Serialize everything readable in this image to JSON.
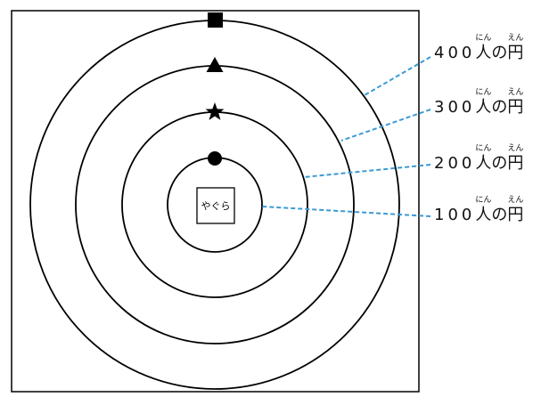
{
  "diagram": {
    "tower_label": "やぐら",
    "rings": [
      {
        "count": "400",
        "unit": "人",
        "unit_ruby": "にん",
        "particle": "の",
        "noun": "円",
        "noun_ruby": "えん",
        "marker": "square-icon"
      },
      {
        "count": "300",
        "unit": "人",
        "unit_ruby": "にん",
        "particle": "の",
        "noun": "円",
        "noun_ruby": "えん",
        "marker": "triangle-icon"
      },
      {
        "count": "200",
        "unit": "人",
        "unit_ruby": "にん",
        "particle": "の",
        "noun": "円",
        "noun_ruby": "えん",
        "marker": "star-icon"
      },
      {
        "count": "100",
        "unit": "人",
        "unit_ruby": "にん",
        "particle": "の",
        "noun": "円",
        "noun_ruby": "えん",
        "marker": "dot-icon"
      }
    ]
  },
  "colors": {
    "background": "#ffffff",
    "stroke": "#000000",
    "leader_line": "#3b9ad6"
  }
}
